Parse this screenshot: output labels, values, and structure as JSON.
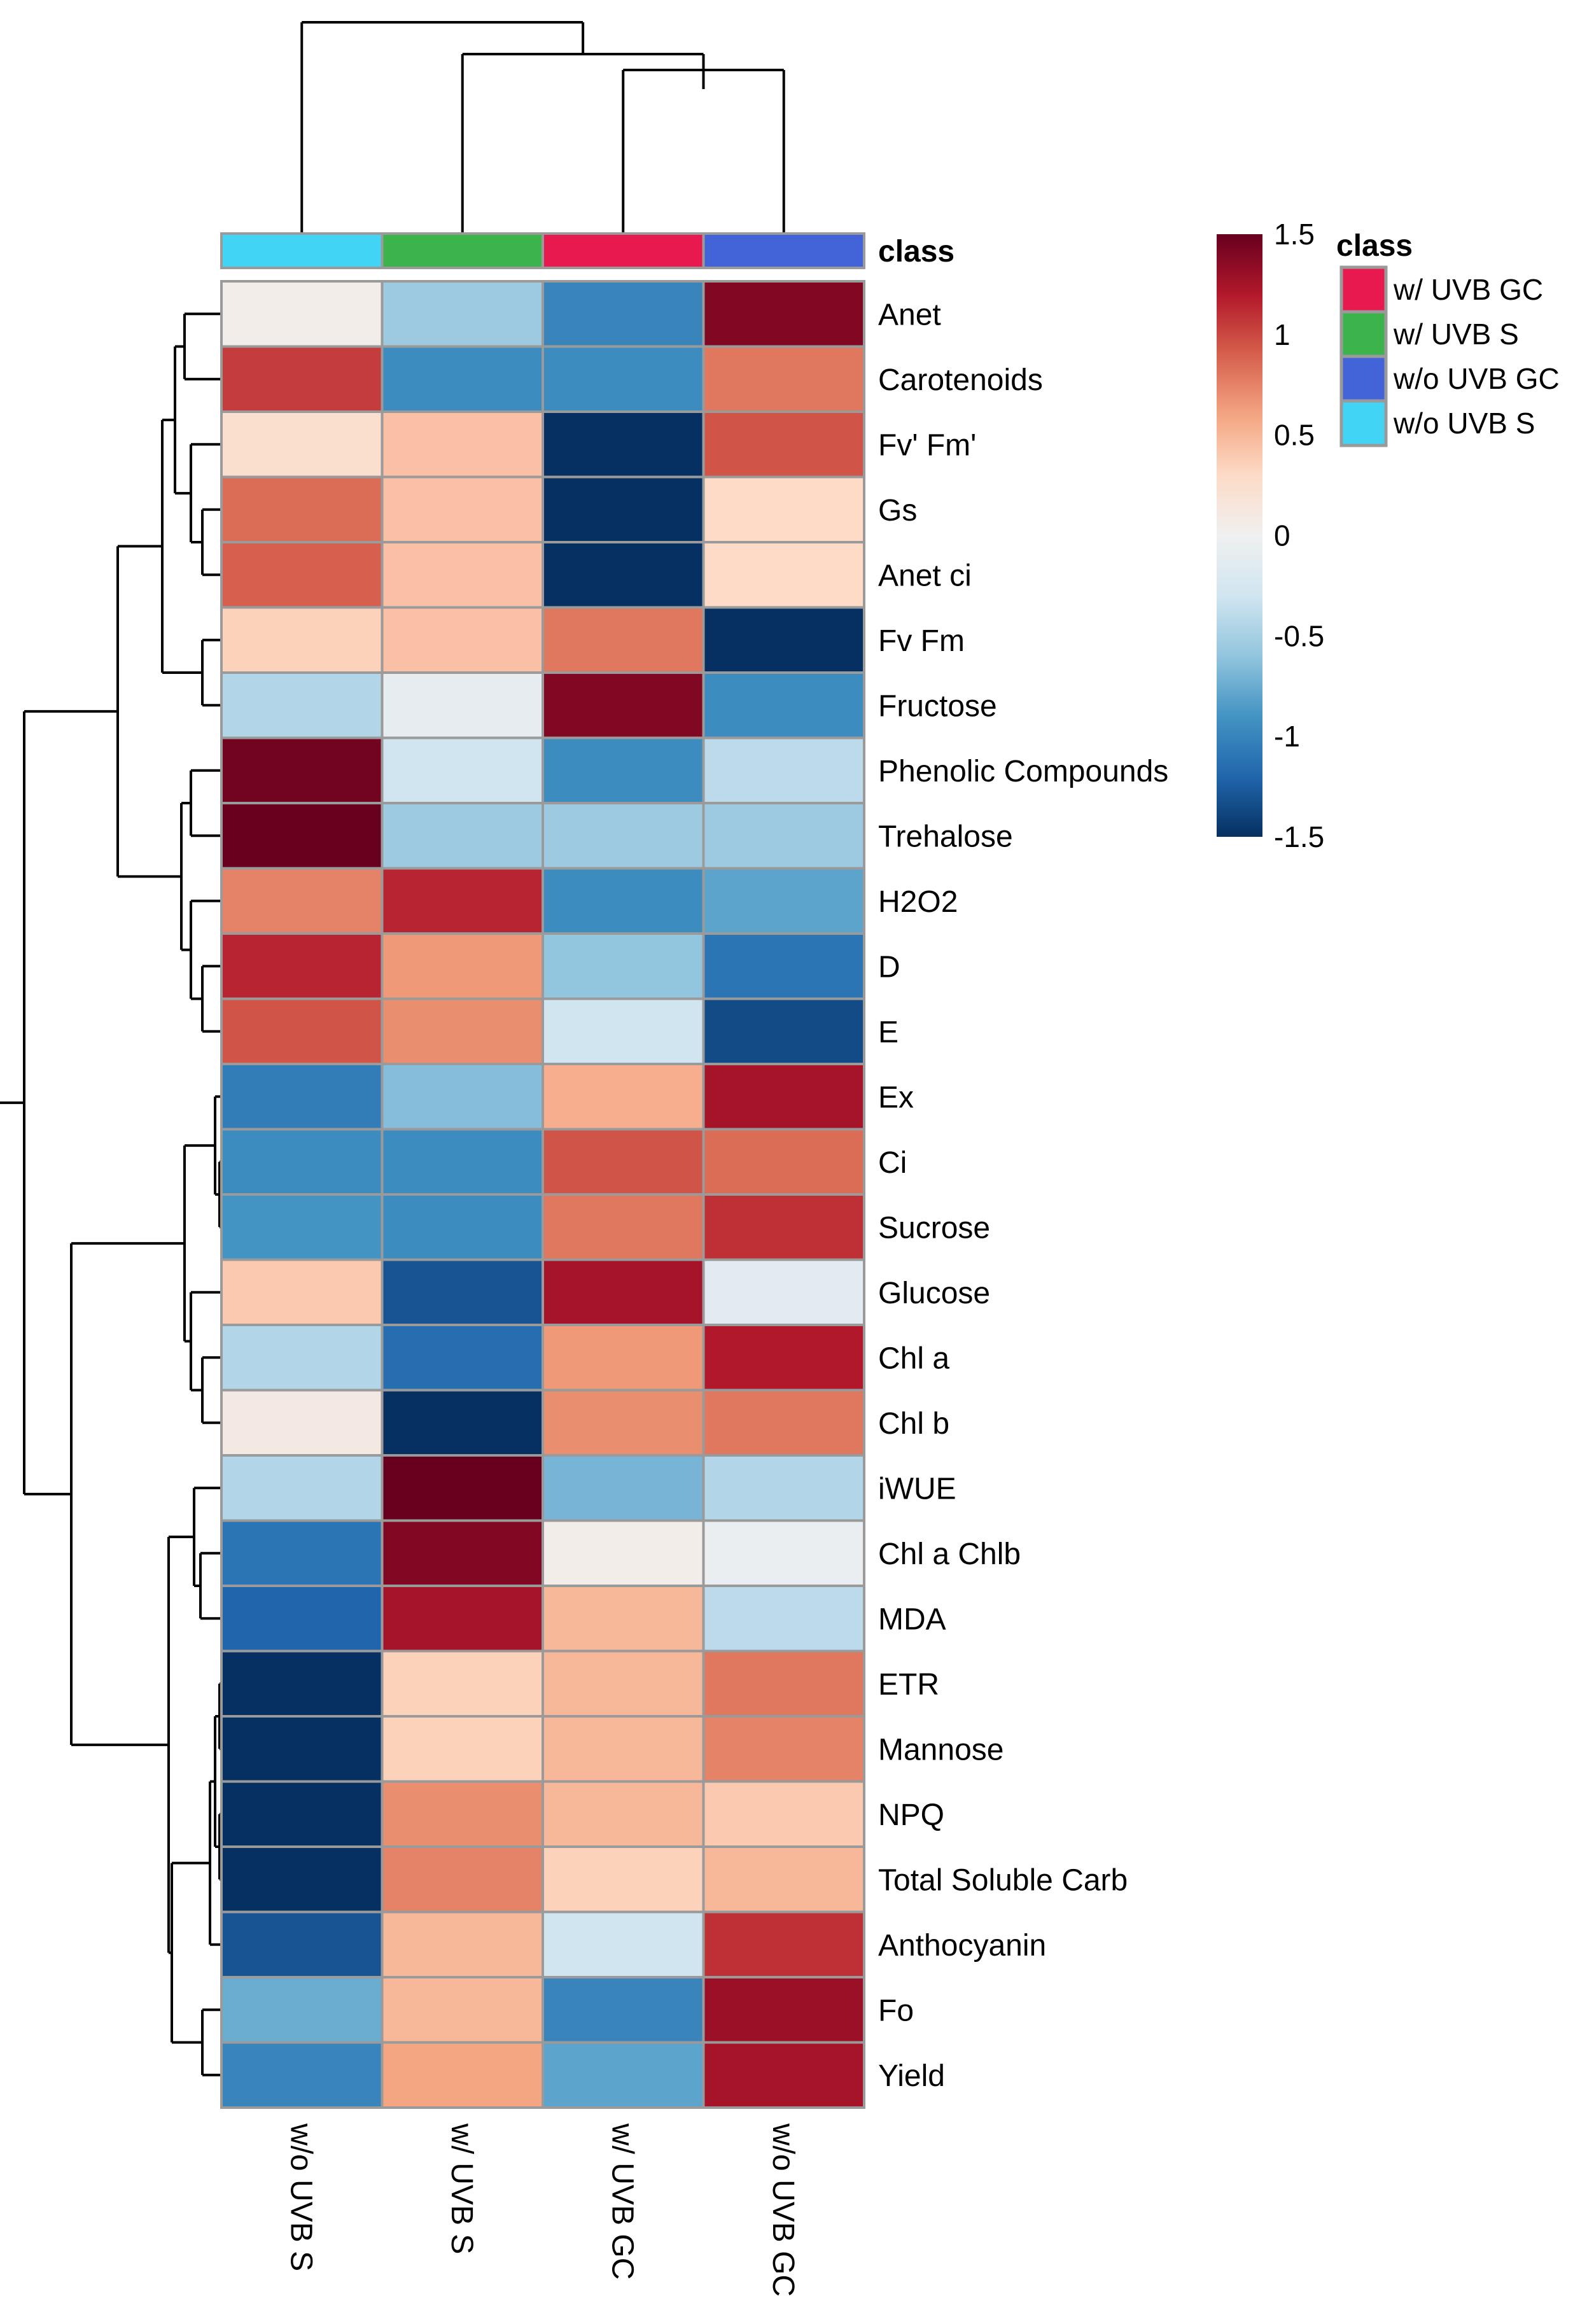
{
  "chart_data": {
    "type": "heatmap",
    "title": "",
    "columns": [
      "w/o UVB S",
      "w/ UVB S",
      "w/ UVB GC",
      "w/o UVB GC"
    ],
    "column_classes": [
      "w/o UVB S",
      "w/ UVB S",
      "w/ UVB GC",
      "w/o UVB GC"
    ],
    "rows": [
      "Anet",
      "Carotenoids",
      "Fv' Fm'",
      "Gs",
      "Anet ci",
      "Fv Fm",
      "Fructose",
      "Phenolic Compounds",
      "Trehalose",
      "H2O2",
      "D",
      "E",
      "Ex",
      "Ci",
      "Sucrose",
      "Glucose",
      "Chl a",
      "Chl b",
      "iWUE",
      "Chl a Chlb",
      "MDA",
      "ETR",
      "Mannose",
      "NPQ",
      "Total Soluble Carb",
      "Anthocyanin",
      "Fo",
      "Yield"
    ],
    "values": [
      [
        0.05,
        -0.55,
        -1.0,
        1.4
      ],
      [
        1.05,
        -0.95,
        -0.95,
        0.8
      ],
      [
        0.25,
        0.45,
        -1.5,
        0.95
      ],
      [
        0.85,
        0.45,
        -1.5,
        0.3
      ],
      [
        0.9,
        0.45,
        -1.5,
        0.3
      ],
      [
        0.35,
        0.45,
        0.8,
        -1.5
      ],
      [
        -0.45,
        -0.1,
        1.4,
        -0.95
      ],
      [
        1.45,
        -0.3,
        -0.95,
        -0.4
      ],
      [
        1.5,
        -0.55,
        -0.55,
        -0.55
      ],
      [
        0.75,
        1.15,
        -0.95,
        -0.8
      ],
      [
        1.15,
        0.65,
        -0.6,
        -1.1
      ],
      [
        0.95,
        0.7,
        -0.3,
        -1.35
      ],
      [
        -1.05,
        -0.65,
        0.55,
        1.25
      ],
      [
        -0.95,
        -0.95,
        0.95,
        0.85
      ],
      [
        -0.9,
        -0.95,
        0.8,
        1.1
      ],
      [
        0.4,
        -1.3,
        1.25,
        -0.15
      ],
      [
        -0.45,
        -1.15,
        0.65,
        1.2
      ],
      [
        0.1,
        -1.5,
        0.7,
        0.8
      ],
      [
        -0.45,
        1.55,
        -0.7,
        -0.45
      ],
      [
        -1.1,
        1.4,
        0.05,
        -0.05
      ],
      [
        -1.2,
        1.25,
        0.5,
        -0.4
      ],
      [
        -1.55,
        0.35,
        0.5,
        0.8
      ],
      [
        -1.55,
        0.35,
        0.5,
        0.75
      ],
      [
        -1.55,
        0.7,
        0.5,
        0.4
      ],
      [
        -1.55,
        0.75,
        0.35,
        0.5
      ],
      [
        -1.3,
        0.5,
        -0.3,
        1.1
      ],
      [
        -0.75,
        0.5,
        -1.0,
        1.3
      ],
      [
        -1.0,
        0.6,
        -0.8,
        1.25
      ]
    ],
    "colorscale": {
      "min": -1.5,
      "max": 1.5,
      "ticks": [
        1.5,
        1,
        0.5,
        0,
        -0.5,
        -1,
        -1.5
      ],
      "tick_labels": [
        "1.5",
        "1",
        "0.5",
        "0",
        "-0.5",
        "-1",
        "-1.5"
      ],
      "colors": [
        "#053061",
        "#2166ac",
        "#4393c3",
        "#92c5de",
        "#d1e5f0",
        "#f0f0f0",
        "#fddbc7",
        "#f4a582",
        "#d6604d",
        "#b2182b",
        "#67001f"
      ]
    },
    "annotation_label": "class",
    "legend": {
      "title": "class",
      "entries": [
        {
          "label": "w/ UVB GC",
          "color": "#e8194e"
        },
        {
          "label": "w/ UVB S",
          "color": "#3cb44b"
        },
        {
          "label": "w/o UVB GC",
          "color": "#4363d8"
        },
        {
          "label": "w/o UVB S",
          "color": "#42d4f4"
        }
      ]
    }
  }
}
